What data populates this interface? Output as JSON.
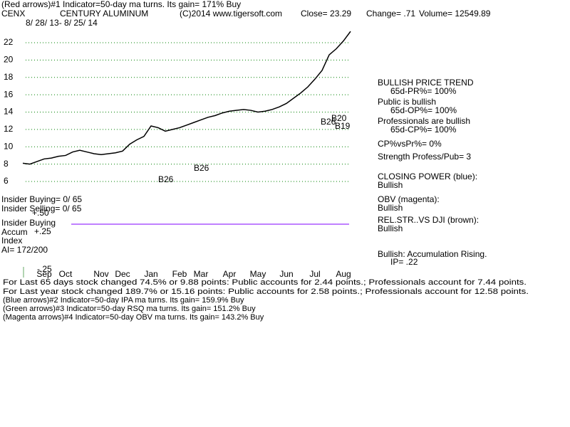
{
  "chart_data": {
    "type": "line",
    "header": {
      "indicator": "(Red arrows)#1 Indicator=50-day ma turns. Its gain= 171% Buy",
      "symbol": "CENX",
      "company": "CENTURY ALUMINUM",
      "copyright": "(C)2014 www.tigersoft.com",
      "close": "Close=  23.29",
      "change": "Change= .71",
      "volume": "Volume= 12549.89",
      "date_range": "8/ 28/ 13- 8/ 25/ 14"
    },
    "categories": [
      null,
      null,
      null,
      "Sep",
      null,
      null,
      "Oct",
      null,
      null,
      null,
      null,
      "Nov",
      null,
      null,
      "Dec",
      null,
      null,
      null,
      "Jan",
      null,
      null,
      null,
      "Feb",
      null,
      null,
      "Mar",
      null,
      null,
      null,
      "Apr",
      null,
      null,
      null,
      "May",
      null,
      null,
      null,
      "Jun",
      null,
      null,
      null,
      "Jul",
      null,
      null,
      null,
      "Aug",
      null
    ],
    "values": [
      8.1,
      8.0,
      8.3,
      8.6,
      8.7,
      8.9,
      9.0,
      9.4,
      9.6,
      9.4,
      9.2,
      9.1,
      9.2,
      9.3,
      9.5,
      10.3,
      10.8,
      11.2,
      12.4,
      12.2,
      11.8,
      12.0,
      12.2,
      12.5,
      12.8,
      13.1,
      13.4,
      13.6,
      13.9,
      14.1,
      14.2,
      14.3,
      14.2,
      14.0,
      14.1,
      14.3,
      14.6,
      15.0,
      15.6,
      16.2,
      16.9,
      17.8,
      18.8,
      20.6,
      21.3,
      22.2,
      23.3
    ],
    "color": "#000000",
    "ylim": [
      5,
      24
    ],
    "yticks": [
      6,
      8,
      10,
      12,
      14,
      16,
      18,
      20,
      22
    ],
    "grid": true,
    "grid_color": "#008000",
    "annotations": [
      "B26",
      "B26",
      "B26",
      "B20",
      "B19"
    ],
    "left_labels": [
      "Insider Buying= 0/ 65",
      "Insider Selling= 0/ 65",
      "+.50",
      "Insider Buying",
      "Accum",
      "+.25",
      "Index",
      "AI= 172/200",
      "-.25"
    ],
    "side_panel": [
      "BULLISH PRICE TREND",
      "65d-PR%= 100%",
      "Public is bullish",
      "65d-OP%= 100%",
      "Professionals are bullish",
      "65d-CP%= 100%",
      "CP%vsPr%=  0%",
      "Strength Profess/Pub= 3",
      "CLOSING POWER (blue):",
      "Bullish",
      "OBV (magenta):",
      "Bullish",
      "REL.STR..VS DJI (brown):",
      "Bullish",
      "Bullish: Accumulation Rising.",
      "IP=  .22"
    ],
    "footer": [
      "For Last 65 days stock changed  74.5% or  9.88 points:  Public accounts for  2.44 points.;  Professionals account for  7.44 points.",
      "For Last year stock changed  189.7% or  15.16 points:  Public accounts for  2.58 points.;  Professionals account for  12.58 points.",
      "(Blue arrows)#2 Indicator=50-day IPA ma turns. Its gain= 159.9% Buy",
      "(Green arrows)#3 Indicator=50-day RSQ ma turns. Its gain= 151.2% Buy",
      "(Magenta arrows)#4 Indicator=50-day OBV ma turns. Its gain= 143.2% Buy"
    ]
  }
}
